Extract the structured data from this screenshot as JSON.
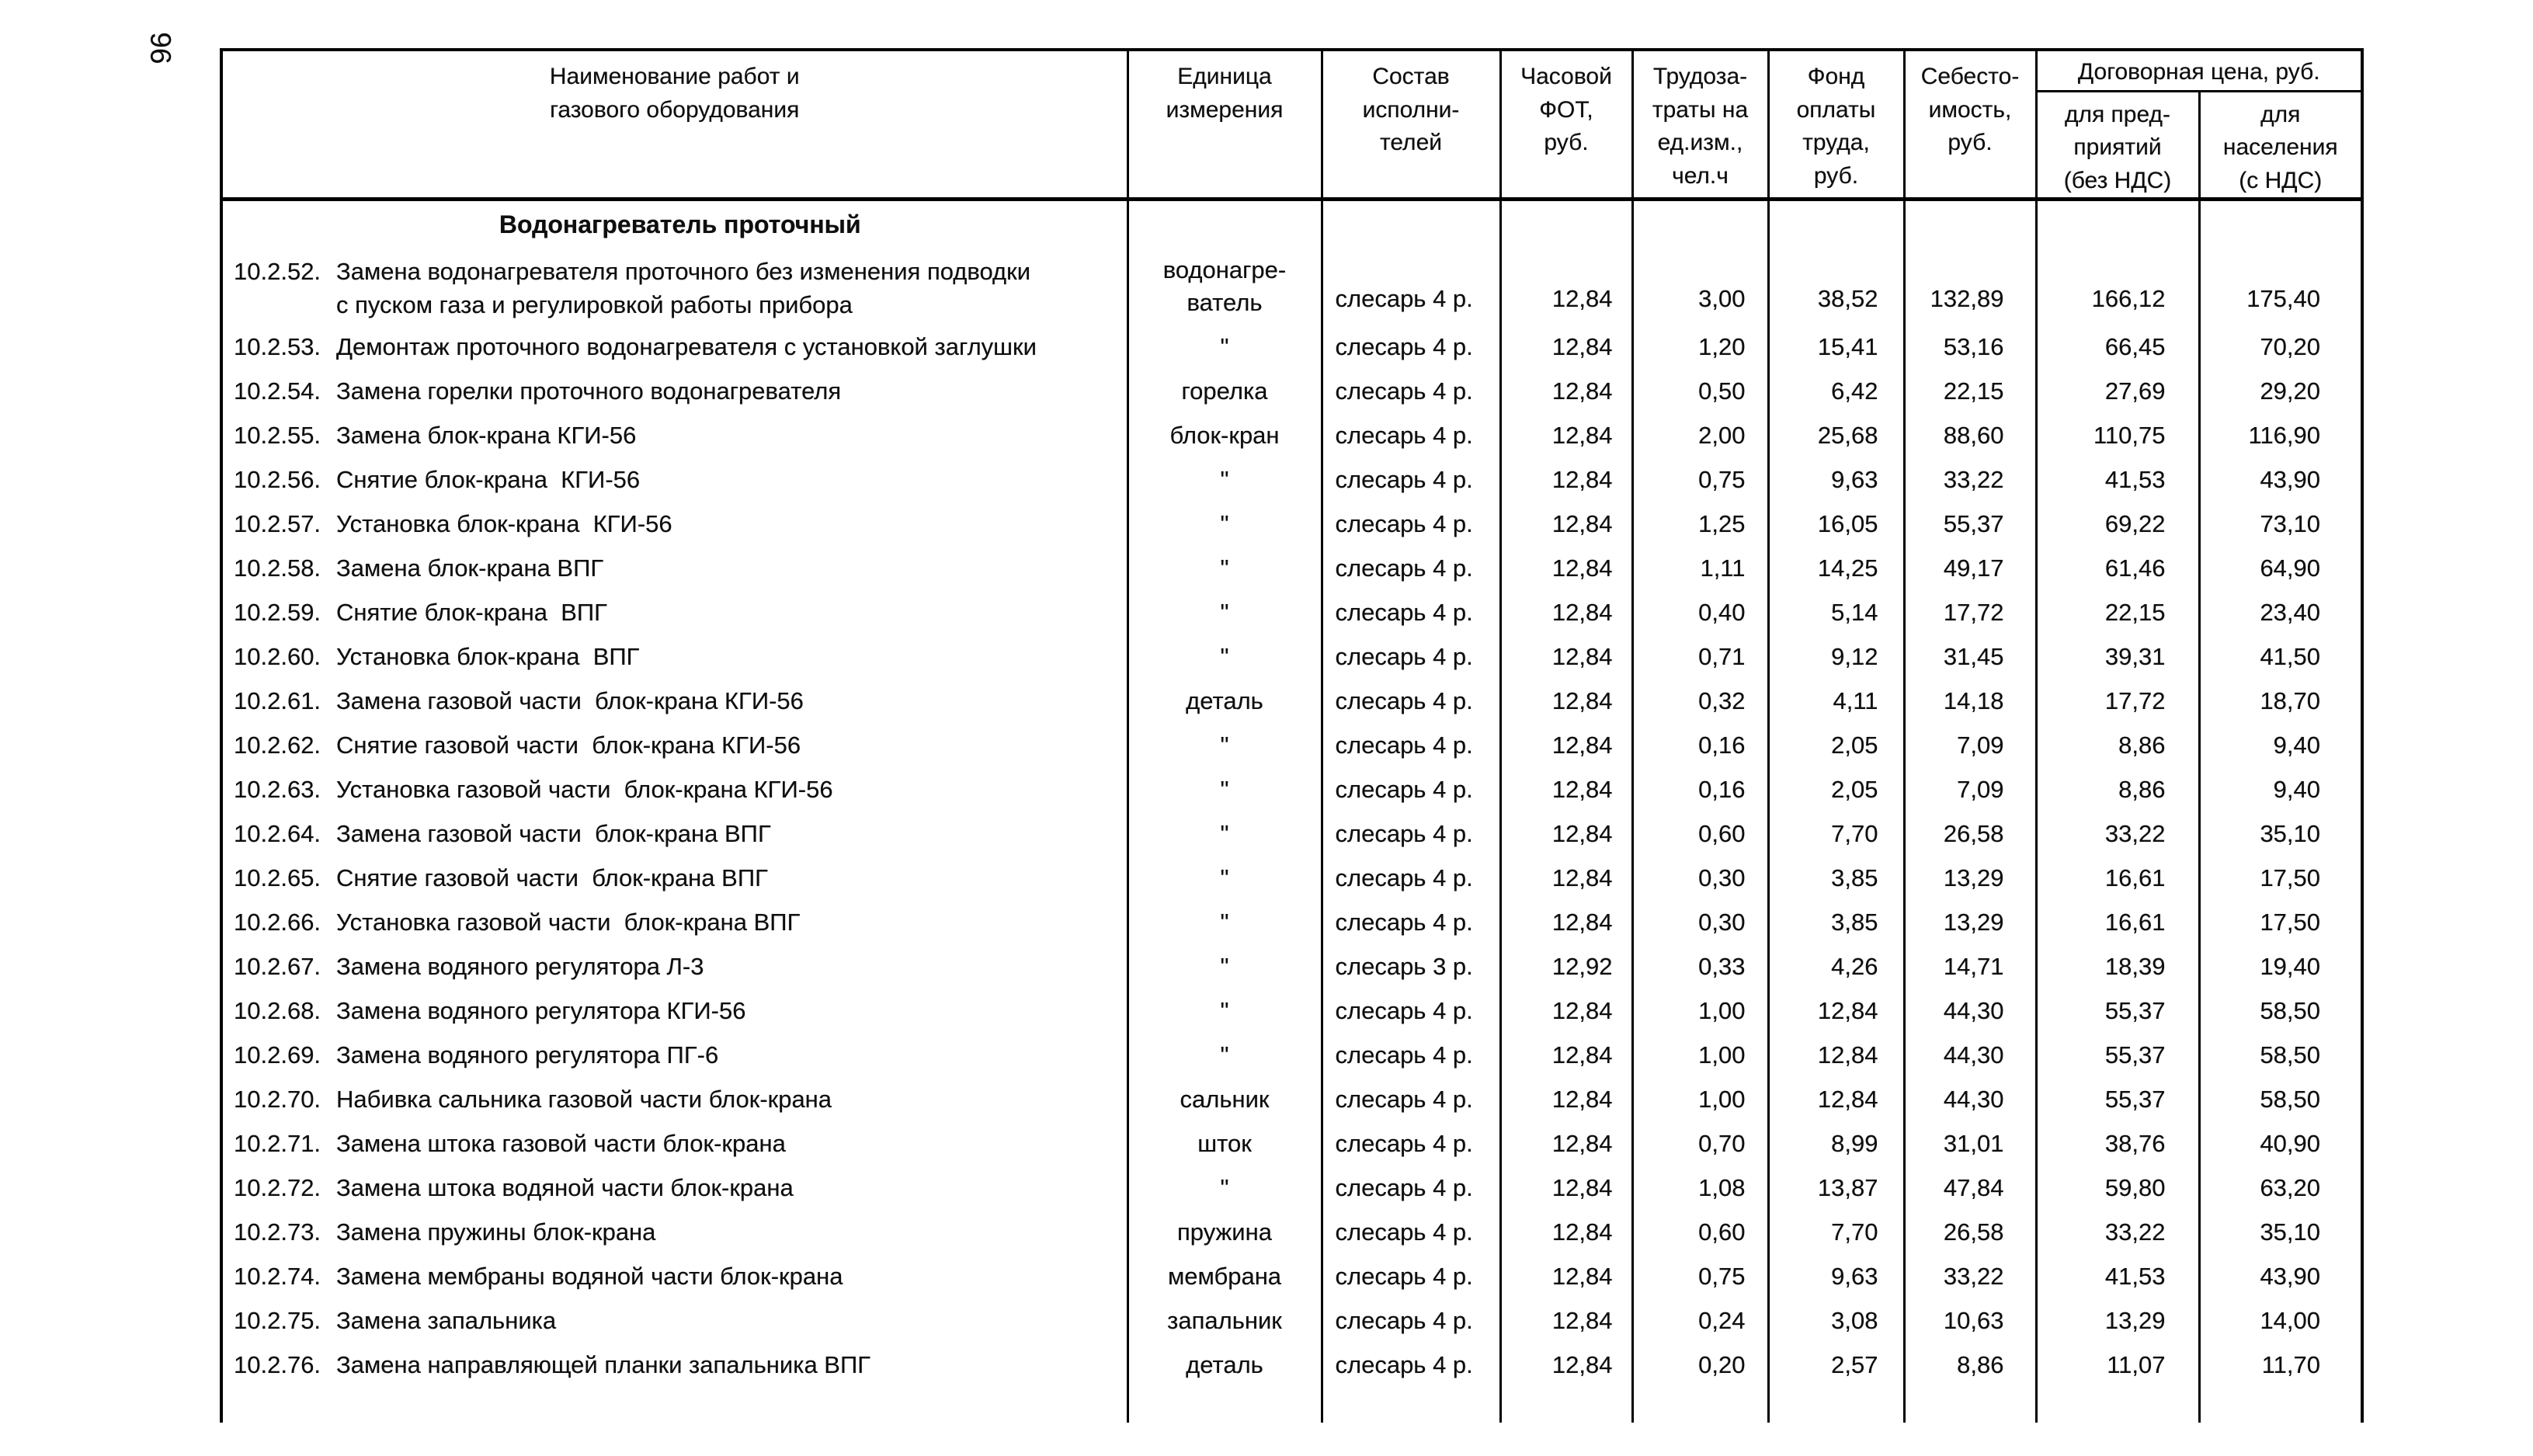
{
  "page_number": "96",
  "colors": {
    "paper": "#ffffff",
    "ink": "#0e0e0e",
    "border": "#000000"
  },
  "table": {
    "headers": {
      "name": "Наименование работ и\nгазового оборудования",
      "unit": "Единица\nизмерения",
      "crew": "Состав\nисполни-\nтелей",
      "fot": "Часовой\nФОТ,\nруб.",
      "labor": "Трудоза-\nтраты на\nед.изм.,\nчел.ч",
      "fund": "Фонд\nоплаты\nтруда,\nруб.",
      "cost": "Себесто-\nимость,\nруб.",
      "contract": "Договорная цена, руб.",
      "ent": "для пред-\nприятий\n(без НДС)",
      "pop": "для\nнаселения\n(с НДС)"
    },
    "section_title": "Водонагреватель проточный",
    "rows": [
      {
        "num": "10.2.52.",
        "name": "Замена водонагревателя проточного без изменения подводки\nс пуском газа и регулировкой работы прибора",
        "unit": "водонагре-\nватель",
        "crew": "слесарь 4 р.",
        "fot": "12,84",
        "labor": "3,00",
        "fund": "38,52",
        "cost": "132,89",
        "ent": "166,12",
        "pop": "175,40",
        "tall": true
      },
      {
        "num": "10.2.53.",
        "name": "Демонтаж проточного водонагревателя с установкой заглушки",
        "unit": "\"",
        "crew": "слесарь 4 р.",
        "fot": "12,84",
        "labor": "1,20",
        "fund": "15,41",
        "cost": "53,16",
        "ent": "66,45",
        "pop": "70,20"
      },
      {
        "num": "10.2.54.",
        "name": "Замена горелки проточного водонагревателя",
        "unit": "горелка",
        "crew": "слесарь 4 р.",
        "fot": "12,84",
        "labor": "0,50",
        "fund": "6,42",
        "cost": "22,15",
        "ent": "27,69",
        "pop": "29,20"
      },
      {
        "num": "10.2.55.",
        "name": "Замена блок-крана КГИ-56",
        "unit": "блок-кран",
        "crew": "слесарь 4 р.",
        "fot": "12,84",
        "labor": "2,00",
        "fund": "25,68",
        "cost": "88,60",
        "ent": "110,75",
        "pop": "116,90"
      },
      {
        "num": "10.2.56.",
        "name": "Снятие блок-крана  КГИ-56",
        "unit": "\"",
        "crew": "слесарь 4 р.",
        "fot": "12,84",
        "labor": "0,75",
        "fund": "9,63",
        "cost": "33,22",
        "ent": "41,53",
        "pop": "43,90"
      },
      {
        "num": "10.2.57.",
        "name": "Установка блок-крана  КГИ-56",
        "unit": "\"",
        "crew": "слесарь 4 р.",
        "fot": "12,84",
        "labor": "1,25",
        "fund": "16,05",
        "cost": "55,37",
        "ent": "69,22",
        "pop": "73,10"
      },
      {
        "num": "10.2.58.",
        "name": "Замена блок-крана ВПГ",
        "unit": "\"",
        "crew": "слесарь 4 р.",
        "fot": "12,84",
        "labor": "1,11",
        "fund": "14,25",
        "cost": "49,17",
        "ent": "61,46",
        "pop": "64,90"
      },
      {
        "num": "10.2.59.",
        "name": "Снятие блок-крана  ВПГ",
        "unit": "\"",
        "crew": "слесарь 4 р.",
        "fot": "12,84",
        "labor": "0,40",
        "fund": "5,14",
        "cost": "17,72",
        "ent": "22,15",
        "pop": "23,40"
      },
      {
        "num": "10.2.60.",
        "name": "Установка блок-крана  ВПГ",
        "unit": "\"",
        "crew": "слесарь 4 р.",
        "fot": "12,84",
        "labor": "0,71",
        "fund": "9,12",
        "cost": "31,45",
        "ent": "39,31",
        "pop": "41,50"
      },
      {
        "num": "10.2.61.",
        "name": "Замена газовой части  блок-крана КГИ-56",
        "unit": "деталь",
        "crew": "слесарь 4 р.",
        "fot": "12,84",
        "labor": "0,32",
        "fund": "4,11",
        "cost": "14,18",
        "ent": "17,72",
        "pop": "18,70"
      },
      {
        "num": "10.2.62.",
        "name": "Снятие газовой части  блок-крана КГИ-56",
        "unit": "\"",
        "crew": "слесарь 4 р.",
        "fot": "12,84",
        "labor": "0,16",
        "fund": "2,05",
        "cost": "7,09",
        "ent": "8,86",
        "pop": "9,40"
      },
      {
        "num": "10.2.63.",
        "name": "Установка газовой части  блок-крана КГИ-56",
        "unit": "\"",
        "crew": "слесарь 4 р.",
        "fot": "12,84",
        "labor": "0,16",
        "fund": "2,05",
        "cost": "7,09",
        "ent": "8,86",
        "pop": "9,40"
      },
      {
        "num": "10.2.64.",
        "name": "Замена газовой части  блок-крана ВПГ",
        "unit": "\"",
        "crew": "слесарь 4 р.",
        "fot": "12,84",
        "labor": "0,60",
        "fund": "7,70",
        "cost": "26,58",
        "ent": "33,22",
        "pop": "35,10"
      },
      {
        "num": "10.2.65.",
        "name": "Снятие газовой части  блок-крана ВПГ",
        "unit": "\"",
        "crew": "слесарь 4 р.",
        "fot": "12,84",
        "labor": "0,30",
        "fund": "3,85",
        "cost": "13,29",
        "ent": "16,61",
        "pop": "17,50"
      },
      {
        "num": "10.2.66.",
        "name": "Установка газовой части  блок-крана ВПГ",
        "unit": "\"",
        "crew": "слесарь 4 р.",
        "fot": "12,84",
        "labor": "0,30",
        "fund": "3,85",
        "cost": "13,29",
        "ent": "16,61",
        "pop": "17,50"
      },
      {
        "num": "10.2.67.",
        "name": "Замена водяного регулятора Л-3",
        "unit": "\"",
        "crew": "слесарь 3 р.",
        "fot": "12,92",
        "labor": "0,33",
        "fund": "4,26",
        "cost": "14,71",
        "ent": "18,39",
        "pop": "19,40"
      },
      {
        "num": "10.2.68.",
        "name": "Замена водяного регулятора КГИ-56",
        "unit": "\"",
        "crew": "слесарь 4 р.",
        "fot": "12,84",
        "labor": "1,00",
        "fund": "12,84",
        "cost": "44,30",
        "ent": "55,37",
        "pop": "58,50"
      },
      {
        "num": "10.2.69.",
        "name": "Замена водяного регулятора ПГ-6",
        "unit": "\"",
        "crew": "слесарь 4 р.",
        "fot": "12,84",
        "labor": "1,00",
        "fund": "12,84",
        "cost": "44,30",
        "ent": "55,37",
        "pop": "58,50"
      },
      {
        "num": "10.2.70.",
        "name": "Набивка сальника газовой части блок-крана",
        "unit": "сальник",
        "crew": "слесарь 4 р.",
        "fot": "12,84",
        "labor": "1,00",
        "fund": "12,84",
        "cost": "44,30",
        "ent": "55,37",
        "pop": "58,50"
      },
      {
        "num": "10.2.71.",
        "name": "Замена штока газовой части блок-крана",
        "unit": "шток",
        "crew": "слесарь 4 р.",
        "fot": "12,84",
        "labor": "0,70",
        "fund": "8,99",
        "cost": "31,01",
        "ent": "38,76",
        "pop": "40,90"
      },
      {
        "num": "10.2.72.",
        "name": "Замена штока водяной части блок-крана",
        "unit": "\"",
        "crew": "слесарь 4 р.",
        "fot": "12,84",
        "labor": "1,08",
        "fund": "13,87",
        "cost": "47,84",
        "ent": "59,80",
        "pop": "63,20"
      },
      {
        "num": "10.2.73.",
        "name": "Замена пружины блок-крана",
        "unit": "пружина",
        "crew": "слесарь 4 р.",
        "fot": "12,84",
        "labor": "0,60",
        "fund": "7,70",
        "cost": "26,58",
        "ent": "33,22",
        "pop": "35,10"
      },
      {
        "num": "10.2.74.",
        "name": "Замена мембраны водяной части блок-крана",
        "unit": "мембрана",
        "crew": "слесарь 4 р.",
        "fot": "12,84",
        "labor": "0,75",
        "fund": "9,63",
        "cost": "33,22",
        "ent": "41,53",
        "pop": "43,90"
      },
      {
        "num": "10.2.75.",
        "name": "Замена запальника",
        "unit": "запальник",
        "crew": "слесарь 4 р.",
        "fot": "12,84",
        "labor": "0,24",
        "fund": "3,08",
        "cost": "10,63",
        "ent": "13,29",
        "pop": "14,00"
      },
      {
        "num": "10.2.76.",
        "name": "Замена направляющей планки запальника ВПГ",
        "unit": "деталь",
        "crew": "слесарь 4 р.",
        "fot": "12,84",
        "labor": "0,20",
        "fund": "2,57",
        "cost": "8,86",
        "ent": "11,07",
        "pop": "11,70"
      }
    ]
  }
}
